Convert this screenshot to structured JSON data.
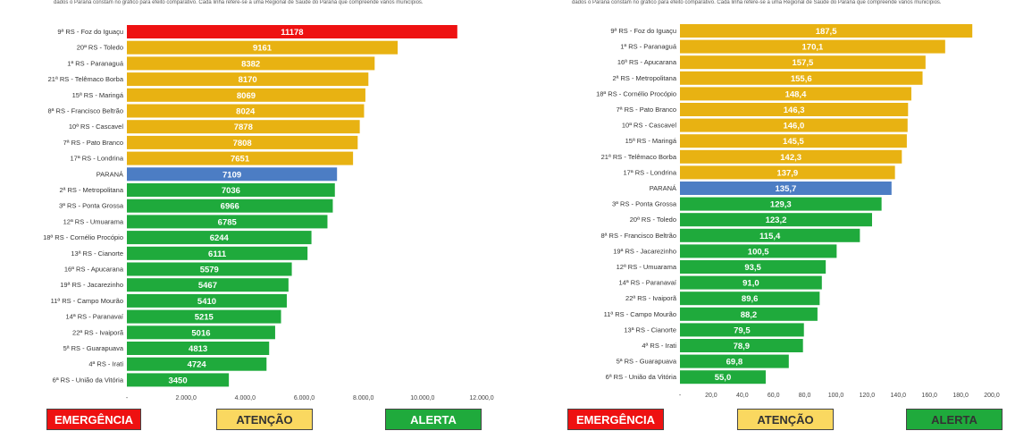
{
  "left": {
    "intro_text": "dados o Paraná constam no gráfico para efeito comparativo. Cada linha refere-se a uma Regional de Saúde do Paraná que compreende vários municípios.",
    "chart_data": {
      "type": "bar",
      "orientation": "horizontal",
      "categories": [
        "9ª RS - Foz do Iguaçu",
        "20ª RS - Toledo",
        "1ª RS - Paranaguá",
        "21ª RS - Telêmaco Borba",
        "15ª RS - Maringá",
        "8ª RS - Francisco Beltrão",
        "10ª RS - Cascavel",
        "7ª RS - Pato Branco",
        "17ª RS - Londrina",
        "PARANÁ",
        "2ª RS - Metropolitana",
        "3ª RS - Ponta Grossa",
        "12ª RS - Umuarama",
        "18ª RS - Cornélio Procópio",
        "13ª RS - Cianorte",
        "16ª RS - Apucarana",
        "19ª RS - Jacarezinho",
        "11ª RS - Campo Mourão",
        "14ª RS - Paranavaí",
        "22ª RS - Ivaiporã",
        "5ª RS - Guarapuava",
        "4ª RS - Irati",
        "6ª RS - União da Vitória"
      ],
      "values": [
        11178,
        9161,
        8382,
        8170,
        8069,
        8024,
        7878,
        7808,
        7651,
        7109,
        7036,
        6966,
        6785,
        6244,
        6111,
        5579,
        5467,
        5410,
        5215,
        5016,
        4813,
        4724,
        3450
      ],
      "value_labels": [
        "11178",
        "9161",
        "8382",
        "8170",
        "8069",
        "8024",
        "7878",
        "7808",
        "7651",
        "7109",
        "7036",
        "6966",
        "6785",
        "6244",
        "6111",
        "5579",
        "5467",
        "5410",
        "5215",
        "5016",
        "4813",
        "4724",
        "3450"
      ],
      "status": [
        "emergencia",
        "atencao",
        "atencao",
        "atencao",
        "atencao",
        "atencao",
        "atencao",
        "atencao",
        "atencao",
        "parana",
        "alerta",
        "alerta",
        "alerta",
        "alerta",
        "alerta",
        "alerta",
        "alerta",
        "alerta",
        "alerta",
        "alerta",
        "alerta",
        "alerta",
        "alerta"
      ],
      "xlim": [
        0,
        12000
      ],
      "ticks": [
        0,
        2000,
        4000,
        6000,
        8000,
        10000,
        12000
      ],
      "tick_labels": [
        "-",
        "2.000,0",
        "4.000,0",
        "6.000,0",
        "8.000,0",
        "10.000,0",
        "12.000,0"
      ]
    },
    "legend": {
      "emergencia": "EMERGÊNCIA",
      "atencao": "ATENÇÃO",
      "alerta": "ALERTA"
    }
  },
  "right": {
    "intro_text": "dados o Paraná constam no gráfico para efeito comparativo. Cada linha refere-se a uma Regional de Saúde do Paraná que compreende vários municípios.",
    "chart_data": {
      "type": "bar",
      "orientation": "horizontal",
      "categories": [
        "9ª RS - Foz do Iguaçu",
        "1ª RS - Paranaguá",
        "16ª RS - Apucarana",
        "2ª RS - Metropolitana",
        "18ª RS - Cornélio Procópio",
        "7ª RS - Pato Branco",
        "10ª RS - Cascavel",
        "15ª RS - Maringá",
        "21ª RS - Telêmaco Borba",
        "17ª RS - Londrina",
        "PARANÁ",
        "3ª RS - Ponta Grossa",
        "20ª RS - Toledo",
        "8ª RS - Francisco Beltrão",
        "19ª RS - Jacarezinho",
        "12ª RS - Umuarama",
        "14ª RS - Paranavaí",
        "22ª RS - Ivaiporã",
        "11ª RS - Campo Mourão",
        "13ª RS - Cianorte",
        "4ª RS - Irati",
        "5ª RS - Guarapuava",
        "6ª RS - União da Vitória"
      ],
      "values": [
        187.5,
        170.1,
        157.5,
        155.6,
        148.4,
        146.3,
        146.0,
        145.5,
        142.3,
        137.9,
        135.7,
        129.3,
        123.2,
        115.4,
        100.5,
        93.5,
        91.0,
        89.6,
        88.2,
        79.5,
        78.9,
        69.8,
        55.0
      ],
      "value_labels": [
        "187,5",
        "170,1",
        "157,5",
        "155,6",
        "148,4",
        "146,3",
        "146,0",
        "145,5",
        "142,3",
        "137,9",
        "135,7",
        "129,3",
        "123,2",
        "115,4",
        "100,5",
        "93,5",
        "91,0",
        "89,6",
        "88,2",
        "79,5",
        "78,9",
        "69,8",
        "55,0"
      ],
      "status": [
        "atencao",
        "atencao",
        "atencao",
        "atencao",
        "atencao",
        "atencao",
        "atencao",
        "atencao",
        "atencao",
        "atencao",
        "parana",
        "alerta",
        "alerta",
        "alerta",
        "alerta",
        "alerta",
        "alerta",
        "alerta",
        "alerta",
        "alerta",
        "alerta",
        "alerta",
        "alerta"
      ],
      "xlim": [
        0,
        200
      ],
      "ticks": [
        0,
        20,
        40,
        60,
        80,
        100,
        120,
        140,
        160,
        180,
        200
      ],
      "tick_labels": [
        "-",
        "20,0",
        "40,0",
        "60,0",
        "80,0",
        "100,0",
        "120,0",
        "140,0",
        "160,0",
        "180,0",
        "200,0"
      ]
    },
    "legend": {
      "emergencia": "EMERGÊNCIA",
      "atencao": "ATENÇÃO",
      "alerta": "ALERTA"
    }
  },
  "colors": {
    "emergencia": "#ee1111",
    "atencao": "#e8b212",
    "alerta": "#1faa3c",
    "parana": "#4c7dc4",
    "legend_atencao_bg": "#fad860"
  }
}
